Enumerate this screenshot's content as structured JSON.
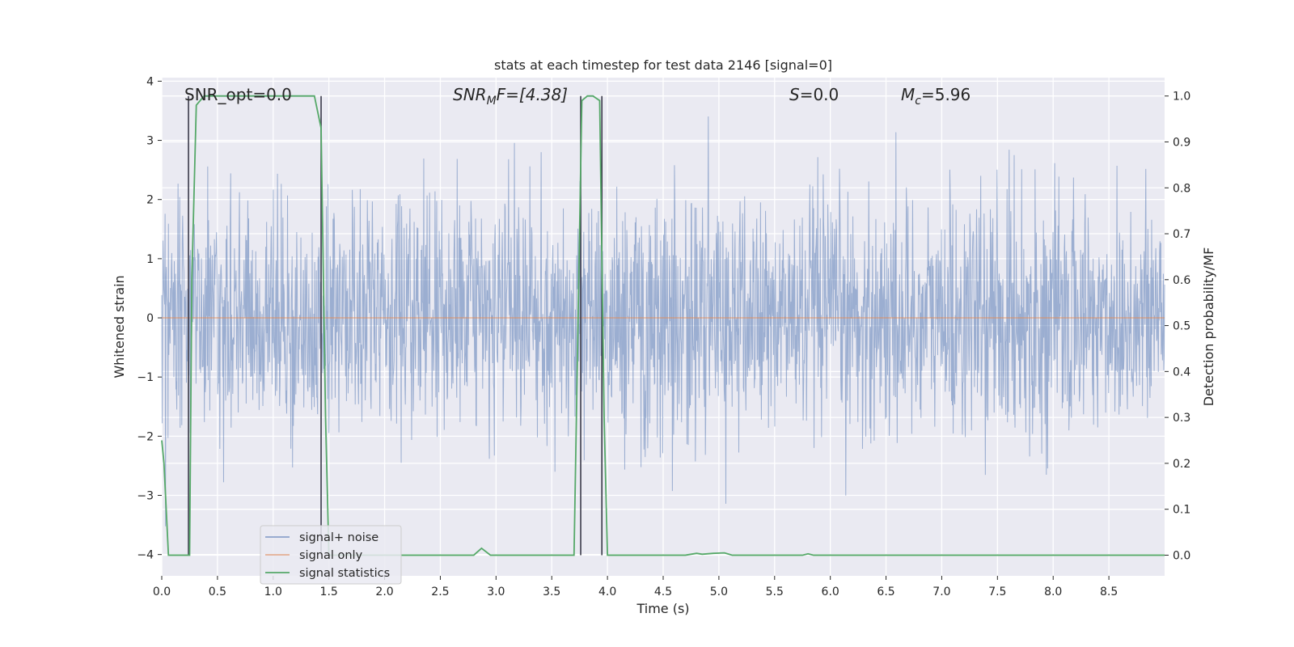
{
  "chart_data": {
    "type": "line",
    "title": "stats at each timestep for test data 2146 [signal=0]",
    "xlabel": "Time (s)",
    "ylabel_left": "Whitened strain",
    "ylabel_right": "Detection probability/MF",
    "xlim": [
      0.0,
      9.0
    ],
    "ylim_left": [
      -4.36,
      4.06
    ],
    "ylim_right": [
      -0.045,
      1.04
    ],
    "xticks": [
      "0.0",
      "0.5",
      "1.0",
      "1.5",
      "2.0",
      "2.5",
      "3.0",
      "3.5",
      "4.0",
      "4.5",
      "5.0",
      "5.5",
      "6.0",
      "6.5",
      "7.0",
      "7.5",
      "8.0",
      "8.5"
    ],
    "yticks_left": [
      "−4",
      "−3",
      "−2",
      "−1",
      "0",
      "1",
      "2",
      "3",
      "4"
    ],
    "yticks_right": [
      "0.0",
      "0.1",
      "0.2",
      "0.3",
      "0.4",
      "0.5",
      "0.6",
      "0.7",
      "0.8",
      "0.9",
      "1.0"
    ],
    "annotations": {
      "snr_opt": "SNR_opt=0.0",
      "snr_mf": "SNR",
      "snr_mf_sub": "M",
      "snr_mf_tail": "F=[4.38]",
      "s_value": "S",
      "s_tail": "=0.0",
      "mc_value": "M",
      "mc_sub": "c",
      "mc_tail": "=5.96"
    },
    "series": [
      {
        "name": "signal+ noise",
        "color": "#4c72b0",
        "description": "whitened noise, approx gaussian std 1",
        "std": 1.0
      },
      {
        "name": "signal only",
        "color": "#dd8452",
        "values_constant": 0.0
      },
      {
        "name": "signal statistics",
        "color": "#55a868",
        "axis": "right",
        "x": [
          0.0,
          0.02,
          0.06,
          0.25,
          0.27,
          0.31,
          0.38,
          0.5,
          1.0,
          1.3,
          1.37,
          1.43,
          1.47,
          1.5,
          1.55,
          2.0,
          2.5,
          2.8,
          2.87,
          2.95,
          3.5,
          3.7,
          3.77,
          3.82,
          3.87,
          3.93,
          3.97,
          4.0,
          4.5,
          4.7,
          4.8,
          4.85,
          4.95,
          5.05,
          5.12,
          5.5,
          5.75,
          5.8,
          5.85,
          6.5,
          9.0
        ],
        "values": [
          0.25,
          0.2,
          0.0,
          0.0,
          0.6,
          0.98,
          1.0,
          1.0,
          1.0,
          1.0,
          1.0,
          0.93,
          0.3,
          0.0,
          0.0,
          0.0,
          0.0,
          0.0,
          0.015,
          0.0,
          0.0,
          0.0,
          0.99,
          1.0,
          1.0,
          0.99,
          0.3,
          0.0,
          0.0,
          0.0,
          0.004,
          0.002,
          0.004,
          0.005,
          0.0,
          0.0,
          0.0,
          0.003,
          0.0,
          0.0,
          0.0
        ]
      }
    ],
    "vertical_markers": [
      0.24,
      1.43,
      3.76,
      3.95
    ],
    "legend_position": "lower-left",
    "grid": true
  },
  "colors": {
    "background": "#eaeaf2",
    "grid": "#ffffff",
    "noise": "#4c72b0",
    "signal": "#dd8452",
    "stats": "#55a868",
    "marker": "#3a3a4a"
  }
}
